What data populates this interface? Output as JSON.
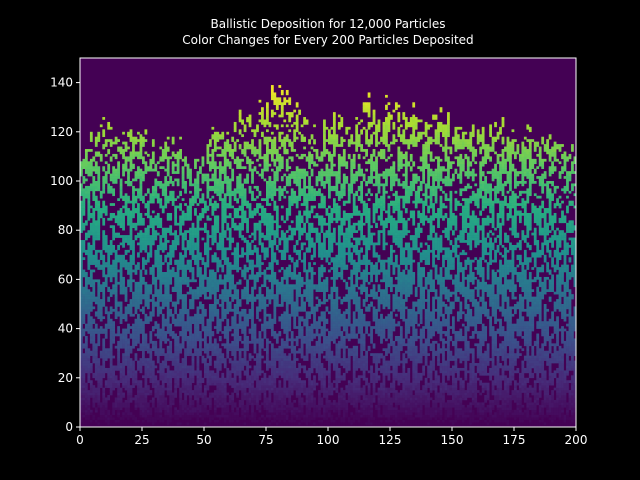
{
  "chart_data": {
    "type": "heatmap",
    "title_lines": [
      "Ballistic Deposition for 12,000 Particles",
      "Color Changes for Every 200 Particles Deposited"
    ],
    "xlabel": "",
    "ylabel": "",
    "xlim": [
      0,
      200
    ],
    "ylim": [
      0,
      150
    ],
    "xticks": [
      0,
      25,
      50,
      75,
      100,
      125,
      150,
      175,
      200
    ],
    "yticks": [
      0,
      20,
      40,
      60,
      80,
      100,
      120,
      140
    ],
    "total_particles": 12000,
    "particles_per_color": 200,
    "colormap": "viridis",
    "grid": false,
    "surface_profile": {
      "x": [
        0,
        5,
        10,
        15,
        20,
        25,
        30,
        35,
        40,
        45,
        50,
        55,
        60,
        65,
        70,
        75,
        80,
        85,
        90,
        95,
        100,
        105,
        110,
        115,
        120,
        125,
        130,
        135,
        140,
        145,
        150,
        155,
        160,
        165,
        170,
        175,
        180,
        185,
        190,
        195,
        200
      ],
      "height": [
        114,
        116,
        124,
        118,
        116,
        122,
        112,
        116,
        114,
        104,
        108,
        124,
        116,
        130,
        124,
        134,
        136,
        132,
        126,
        118,
        124,
        124,
        118,
        132,
        128,
        132,
        126,
        128,
        124,
        130,
        122,
        120,
        124,
        118,
        126,
        122,
        124,
        118,
        120,
        114,
        114
      ]
    }
  },
  "colors": {
    "background": "#000000",
    "axes_face": "#440154",
    "spine": "#ffffff",
    "text": "#ffffff"
  }
}
